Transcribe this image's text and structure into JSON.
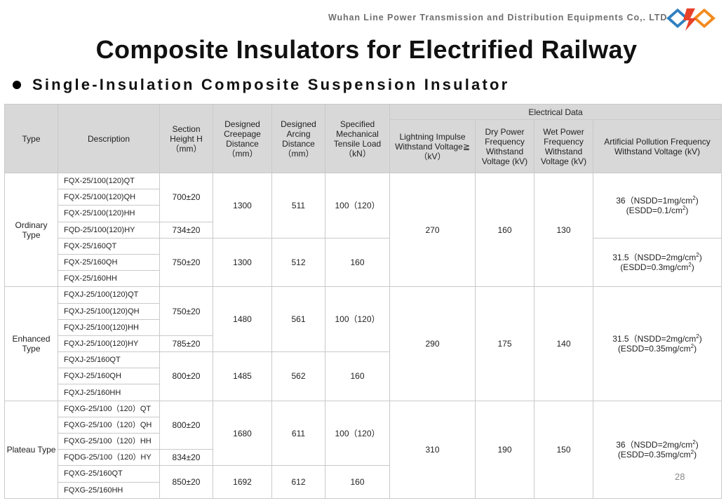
{
  "header": {
    "company": "Wuhan Line Power Transmission and Distribution Equipments Co,. LTD",
    "title": "Composite Insulators for Electrified Railway",
    "subtitle": "Single-Insulation Composite Suspension Insulator"
  },
  "table": {
    "headers": {
      "type": "Type",
      "description": "Description",
      "section_height": "Section Height H（mm）",
      "creepage": "Designed Creepage Distance （mm）",
      "arcing": "Designed Arcing Distance （mm）",
      "tensile": "Specified Mechanical Tensile Load （kN）",
      "electrical": "Electrical Data",
      "lightning": "Lightning Impulse Withstand Voltage≧（kV）",
      "dry": "Dry Power Frequency Withstand Voltage (kV)",
      "wet": "Wet Power Frequency Withstand Voltage (kV)",
      "pollution": "Artificial Pollution Frequency Withstand Voltage (kV)"
    },
    "groups": [
      {
        "type": "Ordinary Type",
        "lightning": "270",
        "dry": "160",
        "wet": "130",
        "descriptions": [
          "FQX-25/100(120)QT",
          "FQX-25/100(120)QH",
          "FQX-25/100(120)HH",
          "FQD-25/100(120)HY",
          "FQX-25/160QT",
          "FQX-25/160QH",
          "FQX-25/160HH"
        ],
        "heights": [
          "700±20",
          "734±20",
          "750±20"
        ],
        "subgroups": [
          {
            "creepage": "1300",
            "arcing": "511",
            "tensile": "100（120）"
          },
          {
            "creepage": "1300",
            "arcing": "512",
            "tensile": "160"
          }
        ],
        "pollution": [
          {
            "main": "36（NSDD=1mg/cm",
            "sup": "2",
            "tail": ")",
            "line2_main": "(ESDD=0.1/cm",
            "line2_sup": "2",
            "line2_tail": ")"
          },
          {
            "main": "31.5（NSDD=2mg/cm",
            "sup": "2",
            "tail": ")",
            "line2_main": "(ESDD=0.3mg/cm",
            "line2_sup": "2",
            "line2_tail": ")"
          }
        ]
      },
      {
        "type": "Enhanced Type",
        "lightning": "290",
        "dry": "175",
        "wet": "140",
        "descriptions": [
          "FQXJ-25/100(120)QT",
          "FQXJ-25/100(120)QH",
          "FQXJ-25/100(120)HH",
          "FQXJ-25/100(120)HY",
          "FQXJ-25/160QT",
          "FQXJ-25/160QH",
          "FQXJ-25/160HH"
        ],
        "heights": [
          "750±20",
          "785±20",
          "800±20"
        ],
        "subgroups": [
          {
            "creepage": "1480",
            "arcing": "561",
            "tensile": "100（120）"
          },
          {
            "creepage": "1485",
            "arcing": "562",
            "tensile": "160"
          }
        ],
        "pollution": [
          {
            "main": "31.5（NSDD=2mg/cm",
            "sup": "2",
            "tail": ")",
            "line2_main": "(ESDD=0.35mg/cm",
            "line2_sup": "2",
            "line2_tail": ")"
          }
        ]
      },
      {
        "type": "Plateau Type",
        "lightning": "310",
        "dry": "190",
        "wet": "150",
        "descriptions": [
          "FQXG-25/100（120）QT",
          "FQXG-25/100（120）QH",
          "FQXG-25/100（120）HH",
          "FQDG-25/100（120）HY",
          "FQXG-25/160QT",
          "FQXG-25/160HH"
        ],
        "heights": [
          "800±20",
          "834±20",
          "850±20"
        ],
        "subgroups": [
          {
            "creepage": "1680",
            "arcing": "611",
            "tensile": "100（120）"
          },
          {
            "creepage": "1692",
            "arcing": "612",
            "tensile": "160"
          }
        ],
        "pollution": [
          {
            "main": "36（NSDD=2mg/cm",
            "sup": "2",
            "tail": ")",
            "line2_main": "(ESDD=0.35mg/cm",
            "line2_sup": "2",
            "line2_tail": ")"
          }
        ]
      }
    ]
  },
  "footer": {
    "page_number": "28"
  },
  "colors": {
    "header_bg": "#d8d8d8",
    "border": "#c9c9c9",
    "logo_blue": "#2f7fc1",
    "logo_orange": "#f28a1e"
  }
}
